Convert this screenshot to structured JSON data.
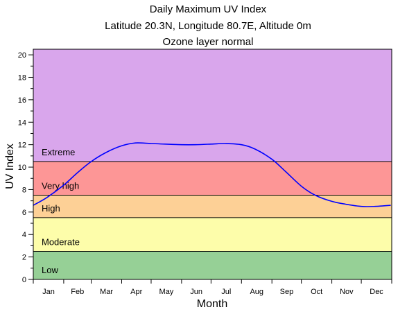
{
  "chart_data": {
    "type": "line",
    "title": "Daily Maximum UV Index",
    "subtitle_lines": [
      "Latitude 20.3N, Longitude 80.7E, Altitude 0m",
      "Ozone layer normal"
    ],
    "xlabel": "Month",
    "ylabel": "UV Index",
    "ylim": [
      0,
      20.5
    ],
    "xlim": [
      1,
      366
    ],
    "y_ticks": [
      0,
      2,
      4,
      6,
      8,
      10,
      12,
      14,
      16,
      18,
      20
    ],
    "month_labels": [
      "Jan",
      "Feb",
      "Mar",
      "Apr",
      "May",
      "Jun",
      "Jul",
      "Aug",
      "Sep",
      "Oct",
      "Nov",
      "Dec"
    ],
    "bands": [
      {
        "label": "Low",
        "from": 0,
        "to": 2.5,
        "color": "#96d096"
      },
      {
        "label": "Moderate",
        "from": 2.5,
        "to": 5.5,
        "color": "#fdfdaa"
      },
      {
        "label": "High",
        "from": 5.5,
        "to": 7.5,
        "color": "#fdd096"
      },
      {
        "label": "Very high",
        "from": 7.5,
        "to": 10.5,
        "color": "#fd9696"
      },
      {
        "label": "Extreme",
        "from": 10.5,
        "to": 20.5,
        "color": "#d9a6ec"
      }
    ],
    "line_color": "#0000ff",
    "grid": false,
    "series": [
      {
        "x": [
          1,
          15,
          32,
          46,
          60,
          75,
          91,
          105,
          121,
          135,
          152,
          166,
          182,
          196,
          213,
          227,
          244,
          258,
          274,
          288,
          305,
          319,
          335,
          349,
          365
        ],
        "y": [
          6.6,
          7.3,
          8.4,
          9.5,
          10.5,
          11.3,
          11.9,
          12.15,
          12.1,
          12.05,
          12.0,
          12.0,
          12.05,
          12.1,
          12.0,
          11.6,
          10.7,
          9.6,
          8.3,
          7.5,
          6.95,
          6.7,
          6.5,
          6.5,
          6.6
        ]
      }
    ]
  }
}
